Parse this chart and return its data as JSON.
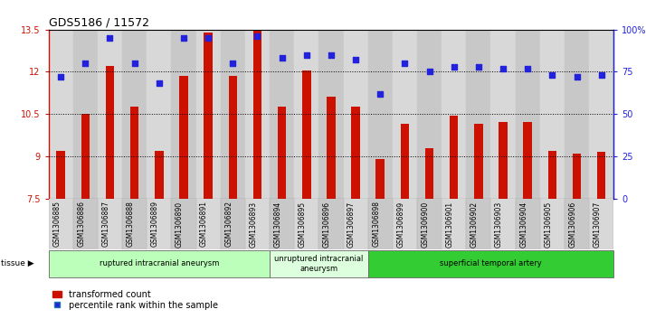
{
  "title": "GDS5186 / 11572",
  "samples": [
    "GSM1306885",
    "GSM1306886",
    "GSM1306887",
    "GSM1306888",
    "GSM1306889",
    "GSM1306890",
    "GSM1306891",
    "GSM1306892",
    "GSM1306893",
    "GSM1306894",
    "GSM1306895",
    "GSM1306896",
    "GSM1306897",
    "GSM1306898",
    "GSM1306899",
    "GSM1306900",
    "GSM1306901",
    "GSM1306902",
    "GSM1306903",
    "GSM1306904",
    "GSM1306905",
    "GSM1306906",
    "GSM1306907"
  ],
  "bar_values": [
    9.2,
    10.5,
    12.2,
    10.75,
    9.2,
    11.85,
    13.4,
    11.85,
    13.45,
    10.75,
    12.05,
    11.1,
    10.75,
    8.9,
    10.15,
    9.3,
    10.45,
    10.15,
    10.2,
    10.2,
    9.2,
    9.1,
    9.15
  ],
  "percentile_values": [
    72,
    80,
    95,
    80,
    68,
    95,
    95,
    80,
    96,
    83,
    85,
    85,
    82,
    62,
    80,
    75,
    78,
    78,
    77,
    77,
    73,
    72,
    73
  ],
  "ymin": 7.5,
  "ymax": 13.5,
  "yticks_left": [
    7.5,
    9.0,
    10.5,
    12.0,
    13.5
  ],
  "ytick_labels_left": [
    "7.5",
    "9",
    "10.5",
    "12",
    "13.5"
  ],
  "yticks_right": [
    0,
    25,
    50,
    75,
    100
  ],
  "ytick_labels_right": [
    "0",
    "25",
    "50",
    "75",
    "100%"
  ],
  "bar_color": "#cc1100",
  "dot_color": "#2222dd",
  "col_colors": [
    "#d8d8d8",
    "#c8c8c8"
  ],
  "plot_bg": "#e8e8e8",
  "groups": [
    {
      "label": "ruptured intracranial aneurysm",
      "start": 0,
      "end": 9,
      "color": "#bbffbb"
    },
    {
      "label": "unruptured intracranial\naneurysm",
      "start": 9,
      "end": 13,
      "color": "#ddffdd"
    },
    {
      "label": "superficial temporal artery",
      "start": 13,
      "end": 23,
      "color": "#33cc33"
    }
  ],
  "legend_bar_label": "transformed count",
  "legend_dot_label": "percentile rank within the sample",
  "gridline_y": [
    9.0,
    10.5,
    12.0
  ]
}
